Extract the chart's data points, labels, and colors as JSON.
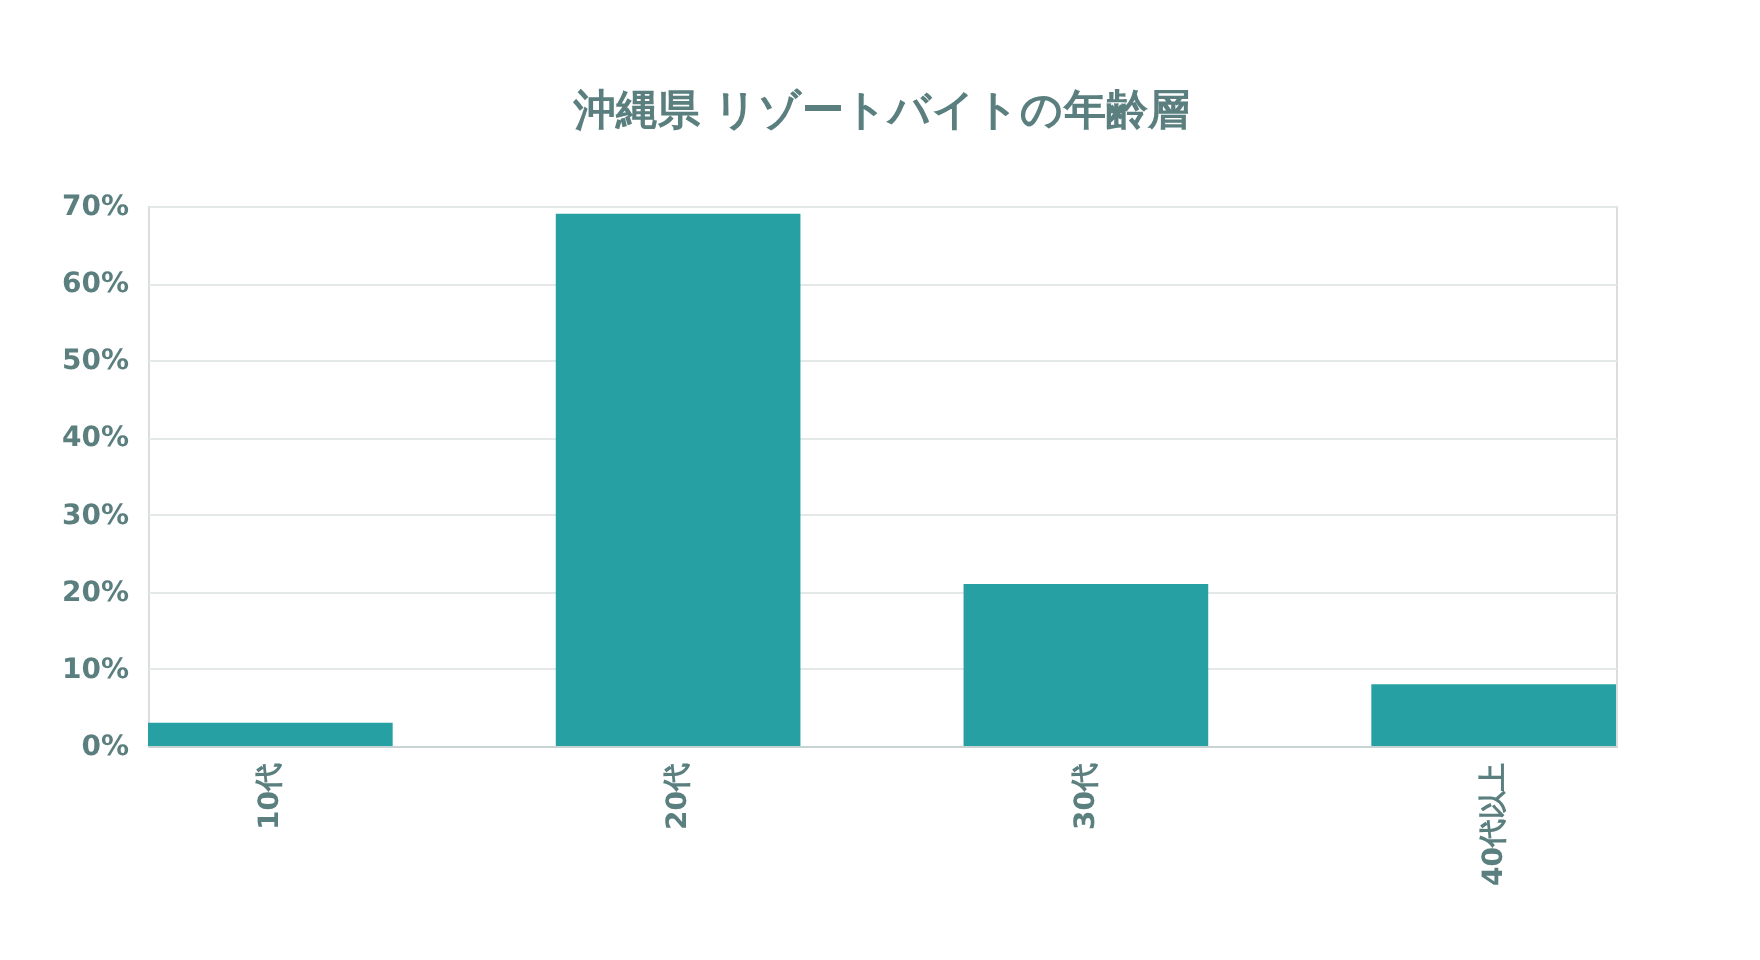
{
  "chart_data": {
    "type": "bar",
    "title": "沖縄県 リゾートバイトの年齢層",
    "categories": [
      "10代",
      "20代",
      "30代",
      "40代以上"
    ],
    "values": [
      3,
      69,
      21,
      8
    ],
    "color": "#26a0a3",
    "ylim": [
      0,
      70
    ],
    "yticks": [
      {
        "value": 0,
        "label": "0%"
      },
      {
        "value": 10,
        "label": "10%"
      },
      {
        "value": 20,
        "label": "20%"
      },
      {
        "value": 30,
        "label": "30%"
      },
      {
        "value": 40,
        "label": "40%"
      },
      {
        "value": 50,
        "label": "50%"
      },
      {
        "value": 60,
        "label": "60%"
      },
      {
        "value": 70,
        "label": "70%"
      }
    ],
    "grid": "y"
  }
}
